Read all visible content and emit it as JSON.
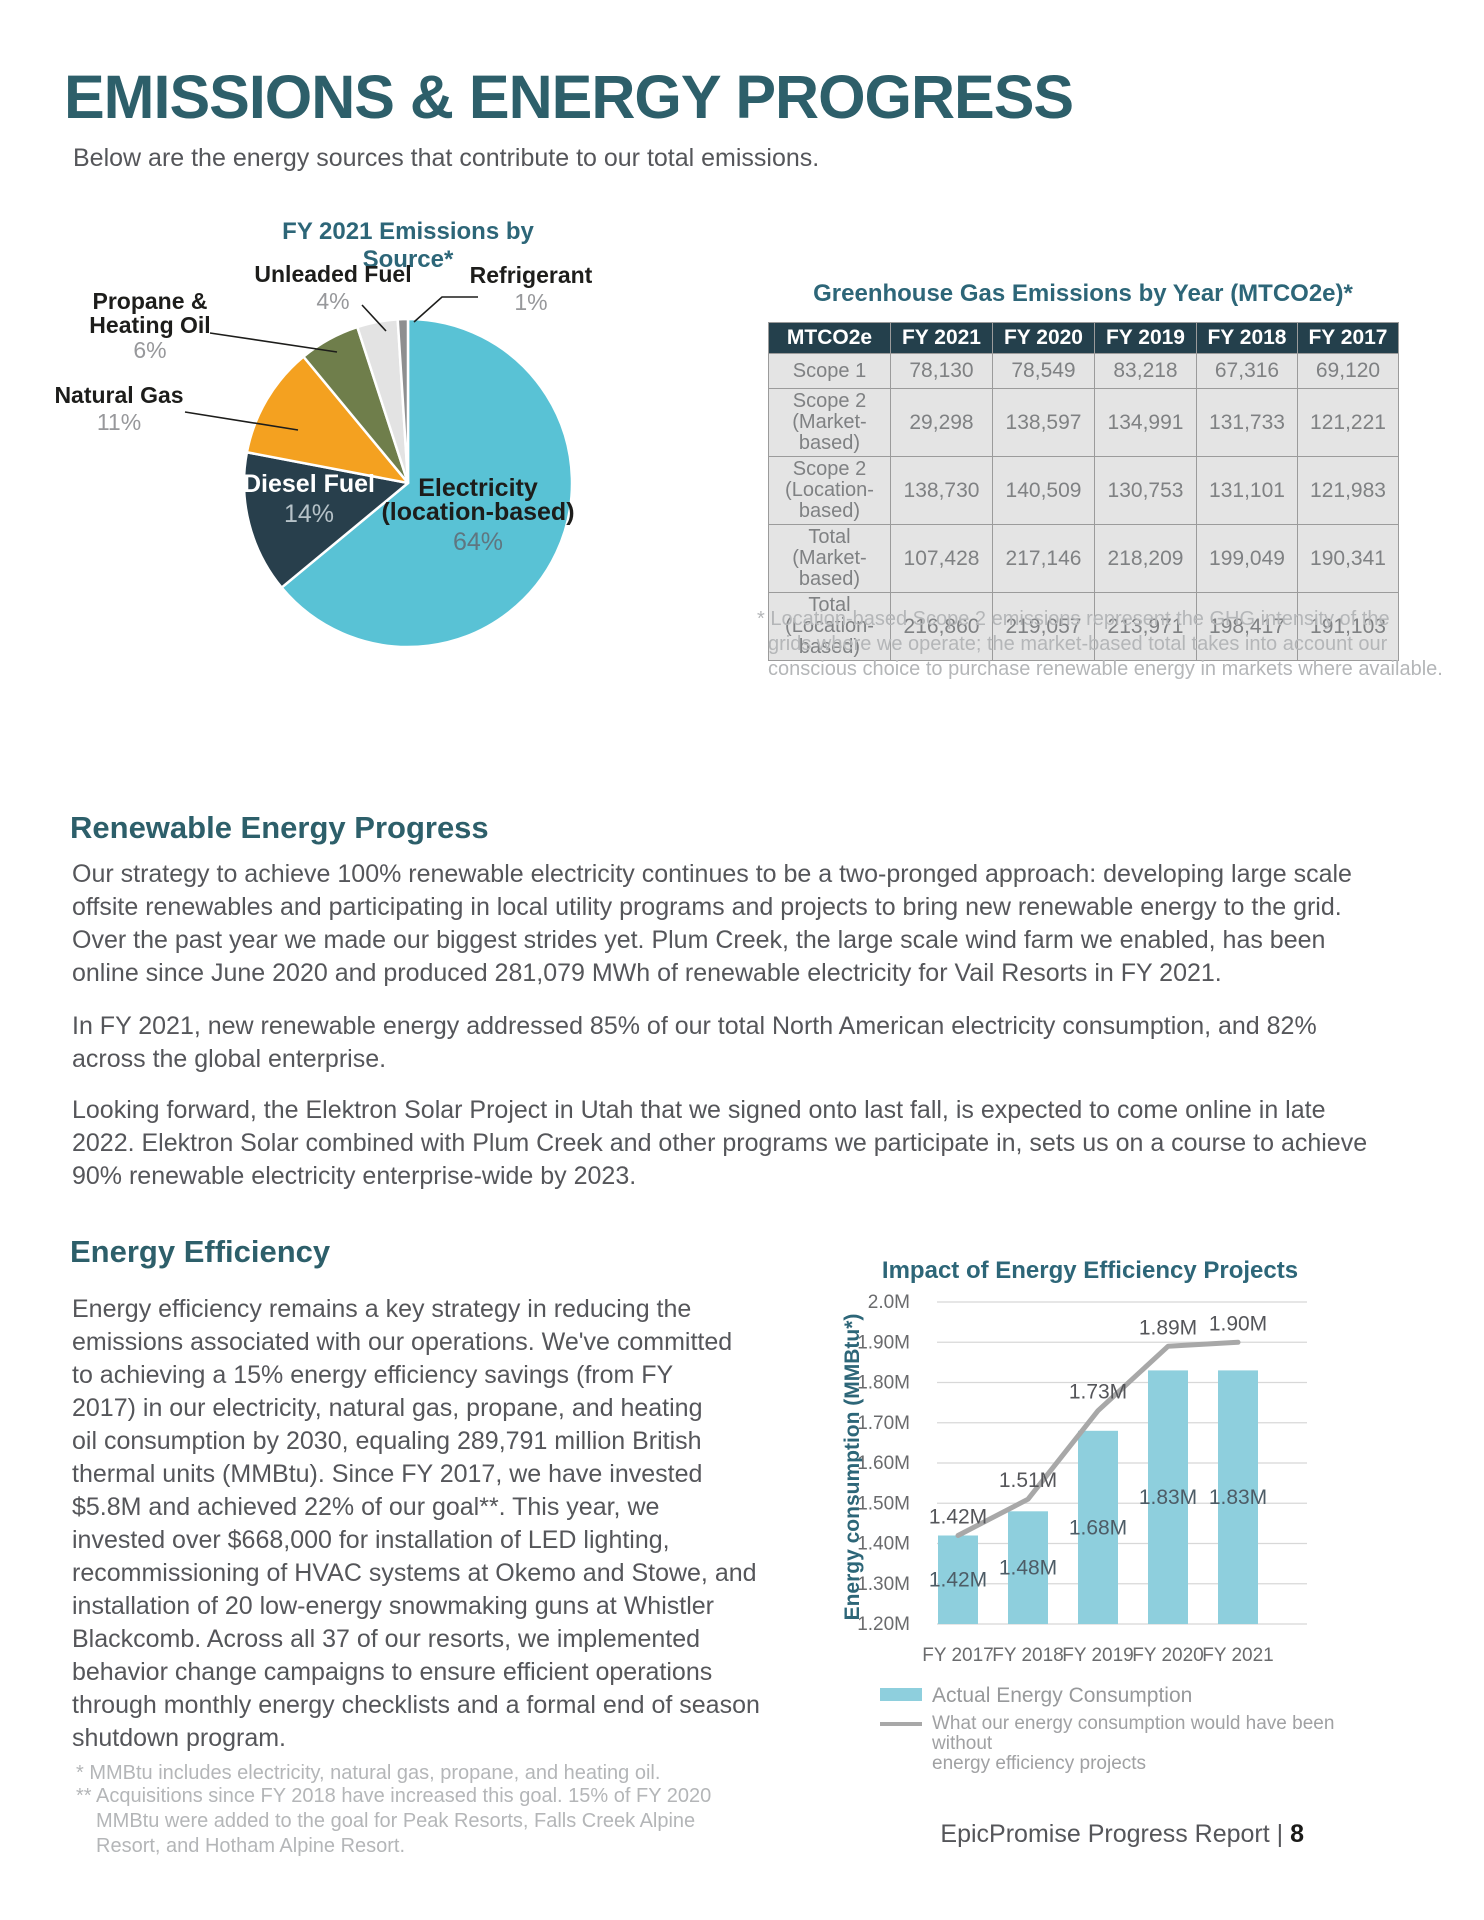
{
  "page": {
    "title": "EMISSIONS & ENERGY PROGRESS",
    "subtitle": "Below are the energy sources that contribute to our total emissions.",
    "footer_text": "EpicPromise Progress Report | ",
    "footer_page": "8"
  },
  "colors": {
    "heading_teal": "#2d5f6a",
    "chart_title_teal": "#2d6678",
    "body_gray": "#55565a",
    "light_gray_text": "#b4b6b8",
    "table_header_bg": "#24404c",
    "table_cell_bg": "#e4e4e4",
    "bar_fill": "#8ecfdd",
    "line_gray": "#a8a8a8"
  },
  "chart_data": [
    {
      "type": "pie",
      "title": "FY 2021 Emissions by Source*",
      "slices": [
        {
          "id": "electricity",
          "label": "Electricity (location-based)",
          "value": 64,
          "color": "#59c2d5"
        },
        {
          "id": "diesel",
          "label": "Diesel Fuel",
          "value": 14,
          "color": "#283f4c"
        },
        {
          "id": "natural-gas",
          "label": "Natural Gas",
          "value": 11,
          "color": "#f4a120"
        },
        {
          "id": "propane",
          "label": "Propane & Heating Oil",
          "value": 6,
          "color": "#6f7e4b"
        },
        {
          "id": "unleaded",
          "label": "Unleaded Fuel",
          "value": 4,
          "color": "#e3e3e3"
        },
        {
          "id": "refrigerant",
          "label": "Refrigerant",
          "value": 1,
          "color": "#8e8f90"
        }
      ],
      "labels": {
        "electricity": {
          "name": [
            "Electricity",
            "(location-based)"
          ],
          "pct": "64%"
        },
        "diesel": {
          "name": "Diesel Fuel",
          "pct": "14%"
        },
        "natural_gas": {
          "name": "Natural Gas",
          "pct": "11%"
        },
        "propane": {
          "name": [
            "Propane &",
            "Heating Oil"
          ],
          "pct": "6%"
        },
        "unleaded": {
          "name": "Unleaded Fuel",
          "pct": "4%"
        },
        "refrigerant": {
          "name": "Refrigerant",
          "pct": "1%"
        }
      }
    },
    {
      "type": "bar+line",
      "title": "Impact of Energy Efficiency Projects",
      "ylabel": "Energy consumption (MMBtu*)",
      "categories": [
        "FY 2017",
        "FY 2018",
        "FY 2019",
        "FY 2020",
        "FY 2021"
      ],
      "ylim": [
        1.2,
        2.0
      ],
      "yticks": [
        "2.0M",
        "1.90M",
        "1.80M",
        "1.70M",
        "1.60M",
        "1.50M",
        "1.40M",
        "1.30M",
        "1.20M"
      ],
      "series": [
        {
          "name": "Actual Energy Consumption",
          "type": "bar",
          "color": "#8ecfdd",
          "values": [
            1.42,
            1.48,
            1.68,
            1.83,
            1.83
          ],
          "labels": [
            "1.42M",
            "1.48M",
            "1.68M",
            "1.83M",
            "1.83M"
          ]
        },
        {
          "name": "What our energy consumption would have been without energy efficiency projects",
          "type": "line",
          "color": "#a8a8a8",
          "values": [
            1.42,
            1.51,
            1.73,
            1.89,
            1.9
          ],
          "labels": [
            "1.42M",
            "1.51M",
            "1.73M",
            "1.89M",
            "1.90M"
          ]
        }
      ],
      "legend": {
        "item1": "Actual Energy Consumption",
        "item2": [
          "What our energy consumption would have been without",
          "energy efficiency projects"
        ]
      }
    }
  ],
  "ghg_table": {
    "title": "Greenhouse Gas Emissions by Year (MTCO2e)*",
    "columns": [
      "MTCO2e",
      "FY 2021",
      "FY 2020",
      "FY 2019",
      "FY 2018",
      "FY 2017"
    ],
    "rows": [
      {
        "label": "Scope 1",
        "values": [
          "78,130",
          "78,549",
          "83,218",
          "67,316",
          "69,120"
        ]
      },
      {
        "label": "Scope 2 (Market-based)",
        "values": [
          "29,298",
          "138,597",
          "134,991",
          "131,733",
          "121,221"
        ]
      },
      {
        "label": "Scope 2 (Location-based)",
        "values": [
          "138,730",
          "140,509",
          "130,753",
          "131,101",
          "121,983"
        ]
      },
      {
        "label": "Total (Market-based)",
        "values": [
          "107,428",
          "217,146",
          "218,209",
          "199,049",
          "190,341"
        ]
      },
      {
        "label": "Total (Location-based)",
        "values": [
          "216,860",
          "219,057",
          "213,971",
          "198,417",
          "191,103"
        ]
      }
    ],
    "footnote": [
      "* Location-based Scope 2 emissions represent the GHG intensity of the",
      "grids where we operate; the market-based total takes into account our",
      "conscious choice to purchase renewable energy in markets where available."
    ]
  },
  "renewable": {
    "heading": "Renewable Energy Progress",
    "paragraphs": [
      [
        "Our strategy to achieve 100% renewable electricity continues to be a two-pronged approach: developing large scale",
        "offsite renewables and participating in local utility programs and projects to bring new renewable energy to the grid.",
        "Over the past year we made our biggest strides yet. Plum Creek, the large scale wind farm we enabled, has been",
        "online since June 2020 and produced 281,079 MWh of renewable electricity for Vail Resorts in FY 2021."
      ],
      [
        "In FY 2021, new renewable energy addressed 85% of our total North American electricity consumption, and 82%",
        "across the global enterprise."
      ],
      [
        "Looking forward, the Elektron Solar Project in Utah that we signed onto last fall, is expected to come online in late",
        "2022. Elektron Solar combined with Plum Creek and other programs we participate in, sets us on a course to achieve",
        "90% renewable electricity enterprise-wide by 2023."
      ]
    ]
  },
  "efficiency": {
    "heading": "Energy Efficiency",
    "lines": [
      "Energy efficiency remains a key strategy in reducing the",
      "emissions associated with our operations. We've committed",
      "to achieving a 15% energy efficiency savings (from FY",
      "2017) in our electricity, natural gas, propane, and heating",
      "oil consumption by 2030, equaling 289,791 million British",
      "thermal units (MMBtu). Since FY 2017, we have invested",
      "$5.8M and achieved 22% of our goal**. This year, we",
      "invested over $668,000 for installation of LED lighting,",
      "recommissioning of HVAC systems at Okemo and Stowe, and",
      "installation of 20 low-energy snowmaking guns at Whistler",
      "Blackcomb. Across all 37 of our resorts, we implemented",
      "behavior change campaigns to ensure efficient operations",
      "through monthly energy checklists and a formal end of season",
      "shutdown program."
    ],
    "footnote1": "* MMBtu includes electricity, natural gas, propane, and heating oil.",
    "footnote2": [
      "** Acquisitions since FY 2018 have increased this goal. 15% of FY 2020",
      "MMBtu were added to the goal for Peak Resorts, Falls Creek Alpine",
      "Resort, and Hotham Alpine Resort."
    ]
  }
}
